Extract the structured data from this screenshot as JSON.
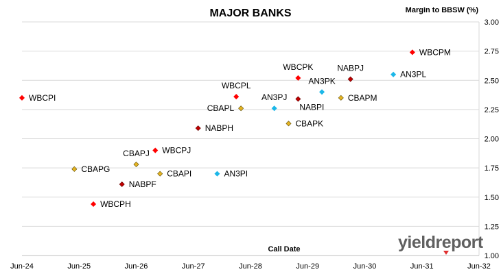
{
  "chart_data": {
    "type": "scatter",
    "title": "MAJOR BANKS",
    "xlabel": "Call Date",
    "ylabel": "Margin to BBSW (%)",
    "xlim": [
      "2024-06",
      "2032-06"
    ],
    "ylim": [
      1.0,
      3.0
    ],
    "x_ticks": [
      "Jun-24",
      "Jun-25",
      "Jun-26",
      "Jun-27",
      "Jun-28",
      "Jun-29",
      "Jun-30",
      "Jun-31",
      "Jun-32"
    ],
    "y_ticks": [
      "1.00",
      "1.25",
      "1.50",
      "1.75",
      "2.00",
      "2.25",
      "2.50",
      "2.75",
      "3.00"
    ],
    "grid": "horizontal",
    "colors": {
      "WBC": "#ff0000",
      "NAB": "#c00000",
      "CBA": "#e6b422",
      "ANZ": "#1cb7e8"
    },
    "points": [
      {
        "label": "WBCPI",
        "x": "2024-06",
        "y": 2.35,
        "group": "WBC",
        "label_pos": "right"
      },
      {
        "label": "CBAPG",
        "x": "2025-05",
        "y": 1.74,
        "group": "CBA",
        "label_pos": "right"
      },
      {
        "label": "WBCPH",
        "x": "2025-09",
        "y": 1.44,
        "group": "WBC",
        "label_pos": "right"
      },
      {
        "label": "NABPF",
        "x": "2026-03",
        "y": 1.61,
        "group": "NAB",
        "label_pos": "right"
      },
      {
        "label": "CBAPJ",
        "x": "2026-06",
        "y": 1.78,
        "group": "CBA",
        "label_pos": "top"
      },
      {
        "label": "WBCPJ",
        "x": "2026-10",
        "y": 1.9,
        "group": "WBC",
        "label_pos": "right"
      },
      {
        "label": "CBAPI",
        "x": "2026-11",
        "y": 1.7,
        "group": "CBA",
        "label_pos": "right"
      },
      {
        "label": "NABPH",
        "x": "2027-07",
        "y": 2.09,
        "group": "NAB",
        "label_pos": "right"
      },
      {
        "label": "AN3PI",
        "x": "2027-11",
        "y": 1.7,
        "group": "ANZ",
        "label_pos": "right"
      },
      {
        "label": "CBAPL",
        "x": "2028-04",
        "y": 2.26,
        "group": "CBA",
        "label_pos": "left"
      },
      {
        "label": "WBCPL",
        "x": "2028-03",
        "y": 2.36,
        "group": "WBC",
        "label_pos": "top"
      },
      {
        "label": "AN3PJ",
        "x": "2028-11",
        "y": 2.26,
        "group": "ANZ",
        "label_pos": "top"
      },
      {
        "label": "CBAPK",
        "x": "2029-02",
        "y": 2.13,
        "group": "CBA",
        "label_pos": "right"
      },
      {
        "label": "WBCPK",
        "x": "2029-04",
        "y": 2.52,
        "group": "WBC",
        "label_pos": "top"
      },
      {
        "label": "NABPI",
        "x": "2029-04",
        "y": 2.34,
        "group": "NAB",
        "label_pos": "below-right"
      },
      {
        "label": "AN3PK",
        "x": "2029-09",
        "y": 2.4,
        "group": "ANZ",
        "label_pos": "top"
      },
      {
        "label": "CBAPM",
        "x": "2030-01",
        "y": 2.35,
        "group": "CBA",
        "label_pos": "right"
      },
      {
        "label": "NABPJ",
        "x": "2030-03",
        "y": 2.51,
        "group": "NAB",
        "label_pos": "top"
      },
      {
        "label": "AN3PL",
        "x": "2030-12",
        "y": 2.55,
        "group": "ANZ",
        "label_pos": "right"
      },
      {
        "label": "WBCPM",
        "x": "2031-04",
        "y": 2.74,
        "group": "WBC",
        "label_pos": "right"
      }
    ]
  },
  "logo": {
    "text": "yieldreport",
    "icon": "yieldreport-wordmark"
  }
}
